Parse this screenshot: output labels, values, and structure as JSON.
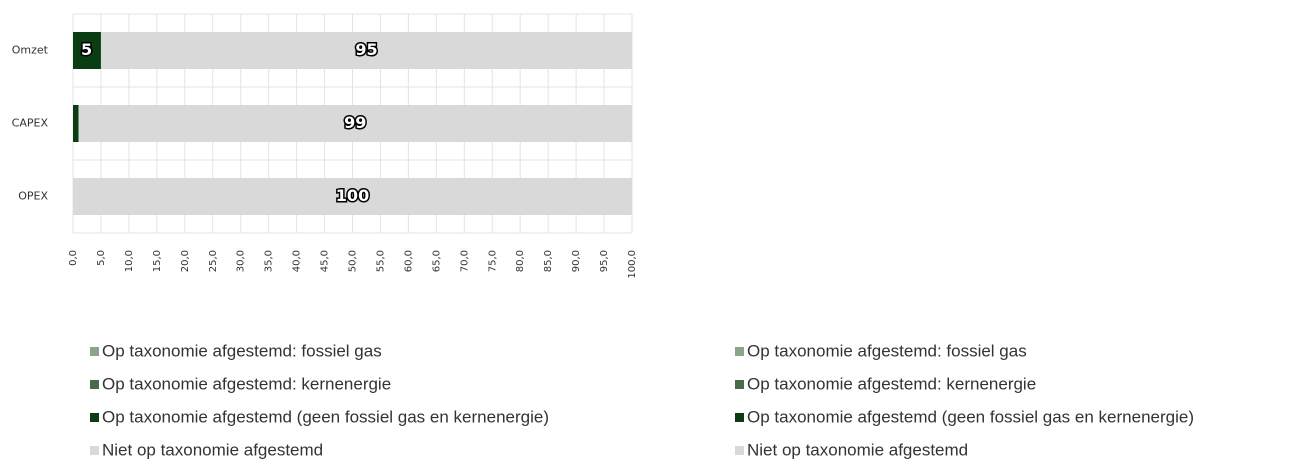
{
  "chart_data": {
    "type": "stacked-barh",
    "categories": [
      "Omzet",
      "CAPEX",
      "OPEX"
    ],
    "series": [
      {
        "name": "Op taxonomie afgestemd: fossiel gas",
        "color": "#8aa58a",
        "values": [
          0,
          0,
          0
        ]
      },
      {
        "name": "Op taxonomie afgestemd: kernenergie",
        "color": "#4a6b4a",
        "values": [
          0,
          0,
          0
        ]
      },
      {
        "name": "Op taxonomie afgestemd (geen fossiel gas en kernenergie)",
        "color": "#0b3d12",
        "values": [
          5,
          1,
          0
        ],
        "labels": true
      },
      {
        "name": "Niet op taxonomie afgestemd",
        "color": "#d9d9d9",
        "values": [
          95,
          99,
          100
        ],
        "labels": true
      }
    ],
    "xlim": [
      0,
      100
    ],
    "xticks": [
      {
        "value": 0,
        "label": "0,0"
      },
      {
        "value": 5,
        "label": "5,0"
      },
      {
        "value": 10,
        "label": "10,0"
      },
      {
        "value": 15,
        "label": "15,0"
      },
      {
        "value": 20,
        "label": "20,0"
      },
      {
        "value": 25,
        "label": "25,0"
      },
      {
        "value": 30,
        "label": "30,0"
      },
      {
        "value": 35,
        "label": "35,0"
      },
      {
        "value": 40,
        "label": "40,0"
      },
      {
        "value": 45,
        "label": "45,0"
      },
      {
        "value": 50,
        "label": "50,0"
      },
      {
        "value": 55,
        "label": "55,0"
      },
      {
        "value": 60,
        "label": "60,0"
      },
      {
        "value": 65,
        "label": "65,0"
      },
      {
        "value": 70,
        "label": "70,0"
      },
      {
        "value": 75,
        "label": "75,0"
      },
      {
        "value": 80,
        "label": "80,0"
      },
      {
        "value": 85,
        "label": "85,0"
      },
      {
        "value": 90,
        "label": "90,0"
      },
      {
        "value": 95,
        "label": "95,0"
      },
      {
        "value": 100,
        "label": "100,0"
      }
    ],
    "grid": true
  }
}
